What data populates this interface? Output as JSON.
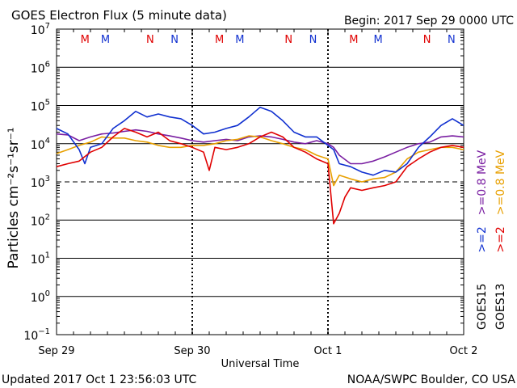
{
  "header": {
    "title": "GOES Electron Flux (5 minute data)",
    "begin": "Begin: 2017 Sep 29 0000 UTC"
  },
  "footer": {
    "updated": "Updated 2017 Oct  1 23:56:03 UTC",
    "source": "NOAA/SWPC Boulder, CO USA"
  },
  "colors": {
    "goes15_08": "#7a1fa2",
    "goes13_08": "#e8a000",
    "goes15_2": "#1030d0",
    "goes13_2": "#e00000",
    "marker_m_first": "#e00000",
    "marker_m_second": "#1030d0",
    "marker_n_first": "#e00000",
    "marker_n_second": "#1030d0"
  },
  "chart_data": {
    "type": "line",
    "ylabel": "Particles cm⁻²s⁻¹sr⁻¹",
    "xlabel": "Universal Time",
    "yscale": "log",
    "ylim": [
      0.1,
      10000000
    ],
    "xlim": [
      "2017-09-29 00:00",
      "2017-10-02 00:00"
    ],
    "y_ticks": [
      {
        "base": "10",
        "exp": "7"
      },
      {
        "base": "10",
        "exp": "6"
      },
      {
        "base": "10",
        "exp": "5"
      },
      {
        "base": "10",
        "exp": "4"
      },
      {
        "base": "10",
        "exp": "3"
      },
      {
        "base": "10",
        "exp": "2"
      },
      {
        "base": "10",
        "exp": "1"
      },
      {
        "base": "10",
        "exp": "0"
      },
      {
        "base": "10",
        "exp": "−1"
      }
    ],
    "x_ticks": [
      "Sep 29",
      "Sep 30",
      "Oct 1",
      "Oct 2"
    ],
    "threshold": 1000,
    "marker_labels": [
      "M",
      "M",
      "N",
      "N",
      "M",
      "M",
      "N",
      "N",
      "M",
      "M",
      "N",
      "N"
    ],
    "legend": [
      {
        "sat": "GOES15",
        "items": [
          {
            "label": ">=2",
            "color": "#1030d0"
          },
          {
            "label": ">=0.8 MeV",
            "color": "#7a1fa2"
          }
        ]
      },
      {
        "sat": "GOES13",
        "items": [
          {
            "label": ">=2",
            "color": "#e00000"
          },
          {
            "label": ">=0.8 MeV",
            "color": "#e8a000"
          }
        ]
      }
    ],
    "series": [
      {
        "color": "#7a1fa2",
        "points": [
          [
            0,
            18000
          ],
          [
            2,
            17000
          ],
          [
            4,
            12000
          ],
          [
            6,
            15000
          ],
          [
            8,
            18000
          ],
          [
            10,
            19000
          ],
          [
            12,
            21000
          ],
          [
            14,
            23000
          ],
          [
            16,
            21000
          ],
          [
            18,
            18000
          ],
          [
            20,
            16000
          ],
          [
            22,
            14000
          ],
          [
            24,
            12000
          ],
          [
            26,
            11000
          ],
          [
            28,
            12000
          ],
          [
            30,
            13000
          ],
          [
            32,
            12000
          ],
          [
            34,
            15000
          ],
          [
            36,
            16000
          ],
          [
            38,
            15000
          ],
          [
            40,
            13000
          ],
          [
            42,
            11000
          ],
          [
            44,
            10000
          ],
          [
            46,
            12000
          ],
          [
            48,
            10000
          ],
          [
            49,
            8000
          ],
          [
            50,
            5000
          ],
          [
            52,
            3000
          ],
          [
            54,
            3000
          ],
          [
            56,
            3500
          ],
          [
            58,
            4500
          ],
          [
            60,
            6000
          ],
          [
            62,
            8000
          ],
          [
            64,
            10000
          ],
          [
            66,
            11000
          ],
          [
            68,
            15000
          ],
          [
            70,
            16000
          ],
          [
            72,
            15000
          ]
        ]
      },
      {
        "color": "#e8a000",
        "points": [
          [
            0,
            5500
          ],
          [
            2,
            7000
          ],
          [
            4,
            9000
          ],
          [
            6,
            11000
          ],
          [
            8,
            15000
          ],
          [
            10,
            14000
          ],
          [
            12,
            14000
          ],
          [
            14,
            12000
          ],
          [
            16,
            11000
          ],
          [
            18,
            9000
          ],
          [
            20,
            8000
          ],
          [
            22,
            8000
          ],
          [
            24,
            9000
          ],
          [
            26,
            9000
          ],
          [
            28,
            10000
          ],
          [
            30,
            12000
          ],
          [
            32,
            13000
          ],
          [
            34,
            16000
          ],
          [
            36,
            15000
          ],
          [
            38,
            12000
          ],
          [
            40,
            10000
          ],
          [
            42,
            8000
          ],
          [
            44,
            7000
          ],
          [
            46,
            5000
          ],
          [
            48,
            4000
          ],
          [
            49,
            800
          ],
          [
            50,
            1500
          ],
          [
            52,
            1200
          ],
          [
            54,
            1000
          ],
          [
            56,
            1200
          ],
          [
            58,
            1300
          ],
          [
            60,
            1800
          ],
          [
            62,
            4000
          ],
          [
            64,
            6000
          ],
          [
            66,
            7000
          ],
          [
            68,
            8000
          ],
          [
            70,
            8000
          ],
          [
            72,
            7000
          ]
        ]
      },
      {
        "color": "#1030d0",
        "points": [
          [
            0,
            25000
          ],
          [
            2,
            18000
          ],
          [
            4,
            7000
          ],
          [
            5,
            3000
          ],
          [
            6,
            8000
          ],
          [
            8,
            10000
          ],
          [
            10,
            25000
          ],
          [
            12,
            40000
          ],
          [
            14,
            70000
          ],
          [
            16,
            50000
          ],
          [
            18,
            60000
          ],
          [
            20,
            50000
          ],
          [
            22,
            45000
          ],
          [
            24,
            30000
          ],
          [
            26,
            18000
          ],
          [
            28,
            20000
          ],
          [
            30,
            25000
          ],
          [
            32,
            30000
          ],
          [
            34,
            50000
          ],
          [
            36,
            90000
          ],
          [
            38,
            70000
          ],
          [
            40,
            40000
          ],
          [
            42,
            20000
          ],
          [
            44,
            15000
          ],
          [
            46,
            15000
          ],
          [
            48,
            9000
          ],
          [
            49,
            7000
          ],
          [
            50,
            3000
          ],
          [
            52,
            2500
          ],
          [
            54,
            1800
          ],
          [
            56,
            1500
          ],
          [
            58,
            2000
          ],
          [
            60,
            1800
          ],
          [
            62,
            3000
          ],
          [
            64,
            8000
          ],
          [
            66,
            15000
          ],
          [
            68,
            30000
          ],
          [
            70,
            45000
          ],
          [
            72,
            30000
          ]
        ]
      },
      {
        "color": "#e00000",
        "points": [
          [
            0,
            2500
          ],
          [
            2,
            3000
          ],
          [
            4,
            3500
          ],
          [
            6,
            6000
          ],
          [
            8,
            8000
          ],
          [
            10,
            15000
          ],
          [
            12,
            25000
          ],
          [
            14,
            20000
          ],
          [
            16,
            15000
          ],
          [
            18,
            20000
          ],
          [
            20,
            12000
          ],
          [
            22,
            10000
          ],
          [
            24,
            8000
          ],
          [
            26,
            6000
          ],
          [
            27,
            2000
          ],
          [
            28,
            8000
          ],
          [
            30,
            7000
          ],
          [
            32,
            8000
          ],
          [
            34,
            10000
          ],
          [
            36,
            15000
          ],
          [
            38,
            20000
          ],
          [
            40,
            15000
          ],
          [
            42,
            8000
          ],
          [
            44,
            6000
          ],
          [
            46,
            4000
          ],
          [
            48,
            3000
          ],
          [
            49,
            80
          ],
          [
            50,
            150
          ],
          [
            51,
            400
          ],
          [
            52,
            700
          ],
          [
            54,
            600
          ],
          [
            56,
            700
          ],
          [
            58,
            800
          ],
          [
            60,
            1000
          ],
          [
            62,
            2500
          ],
          [
            64,
            4000
          ],
          [
            66,
            6000
          ],
          [
            68,
            8000
          ],
          [
            70,
            9000
          ],
          [
            72,
            8000
          ]
        ]
      }
    ]
  }
}
